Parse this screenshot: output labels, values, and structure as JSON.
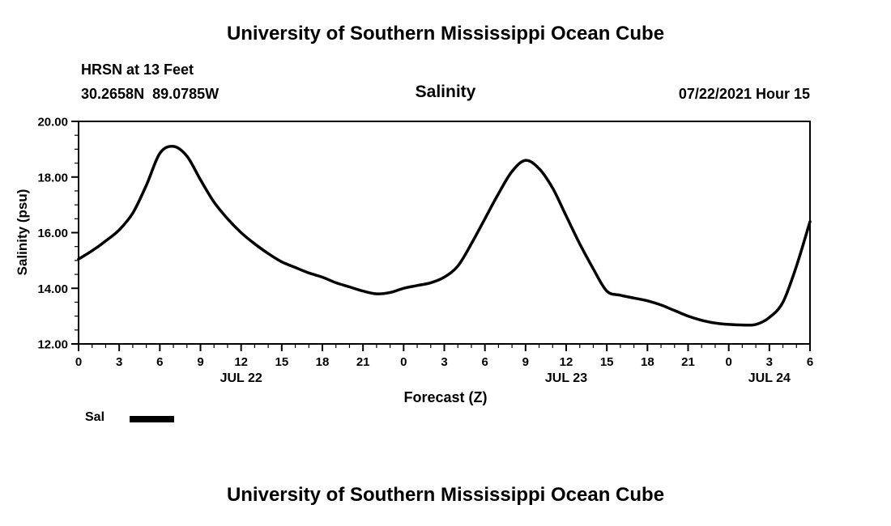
{
  "page": {
    "title_top": "University of Southern Mississippi Ocean Cube",
    "title_bottom": "University of Southern Mississippi Ocean Cube"
  },
  "chart_data": {
    "type": "line",
    "title": "Salinity",
    "station": "HRSN at 13 Feet",
    "location": "30.2658N  89.0785W",
    "run_label": "07/22/2021 Hour 15",
    "xlabel": "Forecast (Z)",
    "ylabel": "Salinity (psu)",
    "ylim": [
      12.0,
      20.0
    ],
    "y_major_ticks": [
      12.0,
      14.0,
      16.0,
      18.0,
      20.0
    ],
    "y_tick_labels": [
      "12.00",
      "14.00",
      "16.00",
      "18.00",
      "20.00"
    ],
    "y_minor_interval": 0.5,
    "xlim": [
      0,
      54
    ],
    "x_major_interval": 3,
    "x_minor_interval": 1,
    "x_tick_labels": [
      "0",
      "3",
      "6",
      "9",
      "12",
      "15",
      "18",
      "21",
      "0",
      "3",
      "6",
      "9",
      "12",
      "15",
      "18",
      "21",
      "0",
      "3",
      "6"
    ],
    "day_labels": [
      {
        "label": "JUL 22",
        "hour": 12
      },
      {
        "label": "JUL 23",
        "hour": 36
      },
      {
        "label": "JUL 24",
        "hour": 51
      }
    ],
    "grid": false,
    "legend_position": "bottom-left",
    "line_color": "#000000",
    "legend": [
      {
        "name": "Sal",
        "color": "#000000"
      }
    ],
    "series": [
      {
        "name": "Sal",
        "x": [
          0,
          1,
          2,
          3,
          4,
          5,
          6,
          7,
          8,
          9,
          10,
          11,
          12,
          13,
          14,
          15,
          16,
          17,
          18,
          19,
          20,
          21,
          22,
          23,
          24,
          25,
          26,
          27,
          28,
          29,
          30,
          31,
          32,
          33,
          34,
          35,
          36,
          37,
          38,
          39,
          40,
          41,
          42,
          43,
          44,
          45,
          46,
          47,
          48,
          49,
          50,
          51,
          52,
          53,
          54
        ],
        "y": [
          15.05,
          15.35,
          15.7,
          16.1,
          16.7,
          17.7,
          18.85,
          19.1,
          18.75,
          17.9,
          17.1,
          16.5,
          16.0,
          15.6,
          15.25,
          14.95,
          14.75,
          14.55,
          14.4,
          14.2,
          14.05,
          13.9,
          13.8,
          13.85,
          14.0,
          14.1,
          14.2,
          14.4,
          14.8,
          15.6,
          16.5,
          17.4,
          18.2,
          18.6,
          18.3,
          17.6,
          16.6,
          15.6,
          14.7,
          13.9,
          13.75,
          13.65,
          13.55,
          13.4,
          13.2,
          13.0,
          12.85,
          12.75,
          12.7,
          12.68,
          12.7,
          12.95,
          13.5,
          14.8,
          16.4
        ]
      }
    ]
  }
}
